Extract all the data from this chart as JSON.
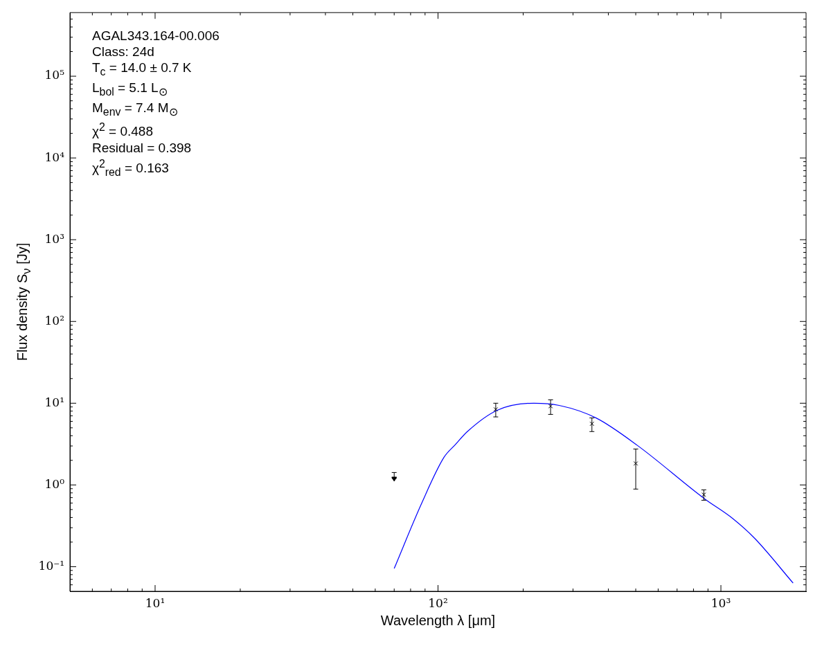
{
  "chart_data": {
    "type": "scatter",
    "xlabel": "Wavelength λ [μm]",
    "ylabel": "Flux density S$_{ν}$ [Jy]",
    "annotations": [
      "AGAL343.164-00.006",
      "Class: 24d",
      "T$_{c}$ = 14.0 ± 0.7 K",
      "L$_{bol}$ = 5.1 L$_{⊙}$",
      "M$_{env}$ = 7.4 M$_{⊙}$",
      "χ$^{2}$ = 0.488",
      "Residual = 0.398",
      "χ$^{2}$$_{red}$ = 0.163"
    ],
    "log": "xy",
    "grid": false,
    "legend": false,
    "xlim": [
      5,
      2000
    ],
    "ylim": [
      0.05,
      600000
    ],
    "xticks": [
      {
        "value": 6,
        "label": null
      },
      {
        "value": 7,
        "label": null
      },
      {
        "value": 8,
        "label": null
      },
      {
        "value": 9,
        "label": null
      },
      {
        "value": 10,
        "label": "10¹"
      },
      {
        "value": 20,
        "label": null
      },
      {
        "value": 30,
        "label": null
      },
      {
        "value": 40,
        "label": null
      },
      {
        "value": 50,
        "label": null
      },
      {
        "value": 60,
        "label": null
      },
      {
        "value": 70,
        "label": null
      },
      {
        "value": 80,
        "label": null
      },
      {
        "value": 90,
        "label": null
      },
      {
        "value": 100,
        "label": "10²"
      },
      {
        "value": 200,
        "label": null
      },
      {
        "value": 300,
        "label": null
      },
      {
        "value": 400,
        "label": null
      },
      {
        "value": 500,
        "label": null
      },
      {
        "value": 600,
        "label": null
      },
      {
        "value": 700,
        "label": null
      },
      {
        "value": 800,
        "label": null
      },
      {
        "value": 900,
        "label": null
      },
      {
        "value": 1000,
        "label": "10³"
      }
    ],
    "yticks": [
      {
        "value": 0.06,
        "label": null
      },
      {
        "value": 0.07,
        "label": null
      },
      {
        "value": 0.08,
        "label": null
      },
      {
        "value": 0.09,
        "label": null
      },
      {
        "value": 0.1,
        "label": "10⁻¹"
      },
      {
        "value": 0.2,
        "label": null
      },
      {
        "value": 0.3,
        "label": null
      },
      {
        "value": 0.4,
        "label": null
      },
      {
        "value": 0.5,
        "label": null
      },
      {
        "value": 0.6,
        "label": null
      },
      {
        "value": 0.7,
        "label": null
      },
      {
        "value": 0.8,
        "label": null
      },
      {
        "value": 0.9,
        "label": null
      },
      {
        "value": 1,
        "label": "10⁰"
      },
      {
        "value": 2,
        "label": null
      },
      {
        "value": 3,
        "label": null
      },
      {
        "value": 4,
        "label": null
      },
      {
        "value": 5,
        "label": null
      },
      {
        "value": 6,
        "label": null
      },
      {
        "value": 7,
        "label": null
      },
      {
        "value": 8,
        "label": null
      },
      {
        "value": 9,
        "label": null
      },
      {
        "value": 10,
        "label": "10¹"
      },
      {
        "value": 20,
        "label": null
      },
      {
        "value": 30,
        "label": null
      },
      {
        "value": 40,
        "label": null
      },
      {
        "value": 50,
        "label": null
      },
      {
        "value": 60,
        "label": null
      },
      {
        "value": 70,
        "label": null
      },
      {
        "value": 80,
        "label": null
      },
      {
        "value": 90,
        "label": null
      },
      {
        "value": 100,
        "label": "10²"
      },
      {
        "value": 200,
        "label": null
      },
      {
        "value": 300,
        "label": null
      },
      {
        "value": 400,
        "label": null
      },
      {
        "value": 500,
        "label": null
      },
      {
        "value": 600,
        "label": null
      },
      {
        "value": 700,
        "label": null
      },
      {
        "value": 800,
        "label": null
      },
      {
        "value": 900,
        "label": null
      },
      {
        "value": 1000,
        "label": "10³"
      },
      {
        "value": 2000,
        "label": null
      },
      {
        "value": 3000,
        "label": null
      },
      {
        "value": 4000,
        "label": null
      },
      {
        "value": 5000,
        "label": null
      },
      {
        "value": 6000,
        "label": null
      },
      {
        "value": 7000,
        "label": null
      },
      {
        "value": 8000,
        "label": null
      },
      {
        "value": 9000,
        "label": null
      },
      {
        "value": 10000,
        "label": "10⁴"
      },
      {
        "value": 20000,
        "label": null
      },
      {
        "value": 30000,
        "label": null
      },
      {
        "value": 40000,
        "label": null
      },
      {
        "value": 50000,
        "label": null
      },
      {
        "value": 60000,
        "label": null
      },
      {
        "value": 70000,
        "label": null
      },
      {
        "value": 80000,
        "label": null
      },
      {
        "value": 90000,
        "label": null
      },
      {
        "value": 100000,
        "label": "10⁵"
      },
      {
        "value": 200000,
        "label": null
      },
      {
        "value": 300000,
        "label": null
      },
      {
        "value": 400000,
        "label": null
      },
      {
        "value": 500000,
        "label": null
      }
    ],
    "series": [
      {
        "type": "line",
        "color": "#0000ff",
        "marker": "none",
        "line_style": "solid",
        "x": [
          70,
          87.4,
          105,
          115,
          127,
          162,
          218,
          268,
          362,
          507,
          874,
          1100,
          1320,
          1800
        ],
        "values": [
          0.095,
          0.59,
          2.18,
          3.1,
          4.5,
          8.2,
          10,
          9.4,
          6.6,
          3.04,
          0.68,
          0.39,
          0.22,
          0.063
        ]
      },
      {
        "color": "#000000",
        "marker": "cross",
        "x": [
          160,
          250,
          350,
          500,
          870
        ],
        "values": [
          8.4,
          9.2,
          5.6,
          1.83,
          0.76
        ],
        "errors": [
          [
            6.8,
            10.0
          ],
          [
            7.3,
            11.0
          ],
          [
            4.5,
            6.6
          ],
          [
            0.89,
            2.75
          ],
          [
            0.65,
            0.87
          ]
        ]
      },
      {
        "color": "#000000",
        "marker": "triangle",
        "x": [
          70
        ],
        "values": [
          1.2
        ],
        "errors": [
          [
            1.2,
            1.42
          ]
        ]
      }
    ]
  }
}
